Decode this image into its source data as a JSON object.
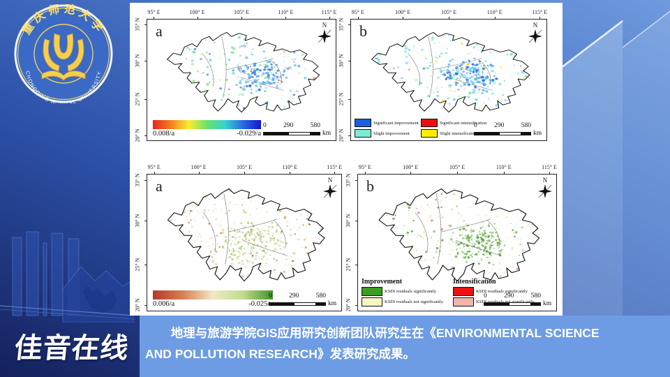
{
  "logo": {
    "cn": "重庆师范大学",
    "en": "CHONGQING NORMAL UNIVERSITY"
  },
  "banner": {
    "brand": "佳音在线",
    "line1": "地理与旅游学院GIS应用研究创新团队研究生在《ENVIRONMENTAL SCIENCE",
    "line2": "AND POLLUTION RESEARCH》发表研究成果。"
  },
  "axes": {
    "x_ticks": [
      "95° E",
      "100° E",
      "105° E",
      "110° E",
      "115° E"
    ],
    "y_ticks_top": [
      "35° N",
      "30° N",
      "25° N",
      "20° N"
    ],
    "y_ticks_bottom": [
      "33° N",
      "30° N",
      "25° N",
      "20° N"
    ],
    "north": "N"
  },
  "scalebar": {
    "zero": "0",
    "mid": "290",
    "max": "580",
    "unit": "km"
  },
  "panels": {
    "ndvi_trend": {
      "label": "a",
      "colorbar": {
        "min": "0.008/a",
        "max": "-0.029/a",
        "stops": [
          "#e8251f",
          "#f57f20",
          "#f7ee32",
          "#6be36b",
          "#35d3cf",
          "#2a6ae0",
          "#1414cf"
        ]
      },
      "map_colors": [
        "#5fd4b4",
        "#8fd96b",
        "#49c2e8",
        "#2b6fd6",
        "#e8703a"
      ]
    },
    "ndvi_sig": {
      "label": "b",
      "legend": [
        {
          "color": "#1b5ee0",
          "label": "Significant improvement"
        },
        {
          "color": "#f20c0c",
          "label": "Significant intensification"
        },
        {
          "color": "#7fe9d6",
          "label": "Slight improvement"
        },
        {
          "color": "#ffee00",
          "label": "Slight intensification"
        }
      ],
      "map_colors": [
        "#5fe0c8",
        "#49c2e8",
        "#1b5ee0",
        "#ffee00",
        "#f03022"
      ]
    },
    "ksdi_trend": {
      "label": "a",
      "colorbar": {
        "min": "0.006/a",
        "max": "-0.025/a",
        "stops": [
          "#b03a2b",
          "#d87f54",
          "#efe9c4",
          "#c2db90",
          "#3f9428"
        ]
      },
      "map_colors": [
        "#d8d08e",
        "#cfa164",
        "#c06a45",
        "#aac96e",
        "#e4dcb2"
      ]
    },
    "ksdi_res": {
      "label": "b",
      "legend_groups": [
        {
          "title": "Improvement",
          "items": [
            {
              "color": "#3a9e1f",
              "label": "KSDI residuals significantly"
            },
            {
              "color": "#f6f6c3",
              "label": "KSDI residuals not significantly"
            }
          ]
        },
        {
          "title": "Intensification",
          "items": [
            {
              "color": "#ee1111",
              "label": "KSDI residuals significantly"
            },
            {
              "color": "#f2b4ac",
              "label": "KSDI residuals not significantly"
            }
          ]
        }
      ],
      "map_colors": [
        "#e8eaae",
        "#4a9e28",
        "#d09090"
      ]
    }
  }
}
